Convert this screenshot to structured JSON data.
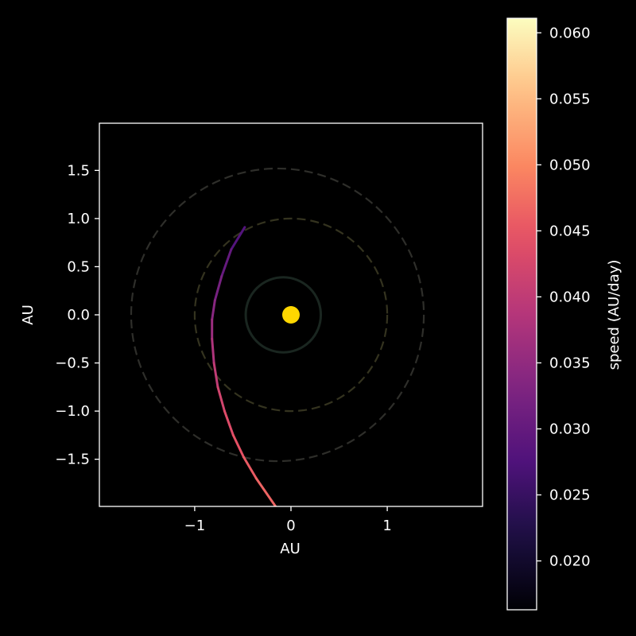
{
  "chart_data": {
    "type": "line",
    "title": "",
    "xlabel": "AU",
    "ylabel": "AU",
    "xlim": [
      -1.99,
      1.99
    ],
    "ylim": [
      -1.99,
      1.99
    ],
    "aspect": "equal",
    "grid": false,
    "background": "#000000",
    "foreground": "#ffffff",
    "xticks": [
      -1,
      0,
      1
    ],
    "xtick_labels": [
      "−1",
      "0",
      "1"
    ],
    "yticks": [
      1.5,
      1.0,
      0.5,
      0.0,
      -0.5,
      -1.0,
      -1.5
    ],
    "ytick_labels": [
      "1.5",
      "1.0",
      "0.5",
      "0.0",
      "−0.5",
      "−1.0",
      "−1.5"
    ],
    "sun": {
      "x": 0,
      "y": 0,
      "color": "#ffd700"
    },
    "orbits": [
      {
        "name": "",
        "cx": -0.08,
        "cy": 0.0,
        "r": 0.39,
        "style": "solid",
        "color": "#1a2620"
      },
      {
        "name": "",
        "cx": 0.0,
        "cy": 0.0,
        "r": 1.0,
        "style": "dashed",
        "color": "#34331f"
      },
      {
        "name": "",
        "cx": -0.14,
        "cy": 0.0,
        "r": 1.52,
        "style": "dashed",
        "color": "#2e2e2a"
      }
    ],
    "trajectory": {
      "x": [
        -0.48,
        -0.62,
        -0.72,
        -0.79,
        -0.82,
        -0.82,
        -0.8,
        -0.76,
        -0.69,
        -0.6,
        -0.49,
        -0.36,
        -0.16
      ],
      "y": [
        0.91,
        0.68,
        0.4,
        0.15,
        -0.05,
        -0.25,
        -0.5,
        -0.75,
        -1.0,
        -1.25,
        -1.48,
        -1.7,
        -1.99
      ],
      "speed": [
        0.027,
        0.029,
        0.031,
        0.033,
        0.035,
        0.037,
        0.039,
        0.041,
        0.043,
        0.044,
        0.045,
        0.046,
        0.047
      ]
    },
    "colorbar": {
      "label": "speed (AU/day)",
      "colormap": "magma",
      "vmin": 0.0163,
      "vmax": 0.0611,
      "ticks": [
        0.02,
        0.025,
        0.03,
        0.035,
        0.04,
        0.045,
        0.05,
        0.055,
        0.06
      ],
      "tick_labels": [
        "0.020",
        "0.025",
        "0.030",
        "0.035",
        "0.040",
        "0.045",
        "0.050",
        "0.055",
        "0.060"
      ]
    }
  }
}
